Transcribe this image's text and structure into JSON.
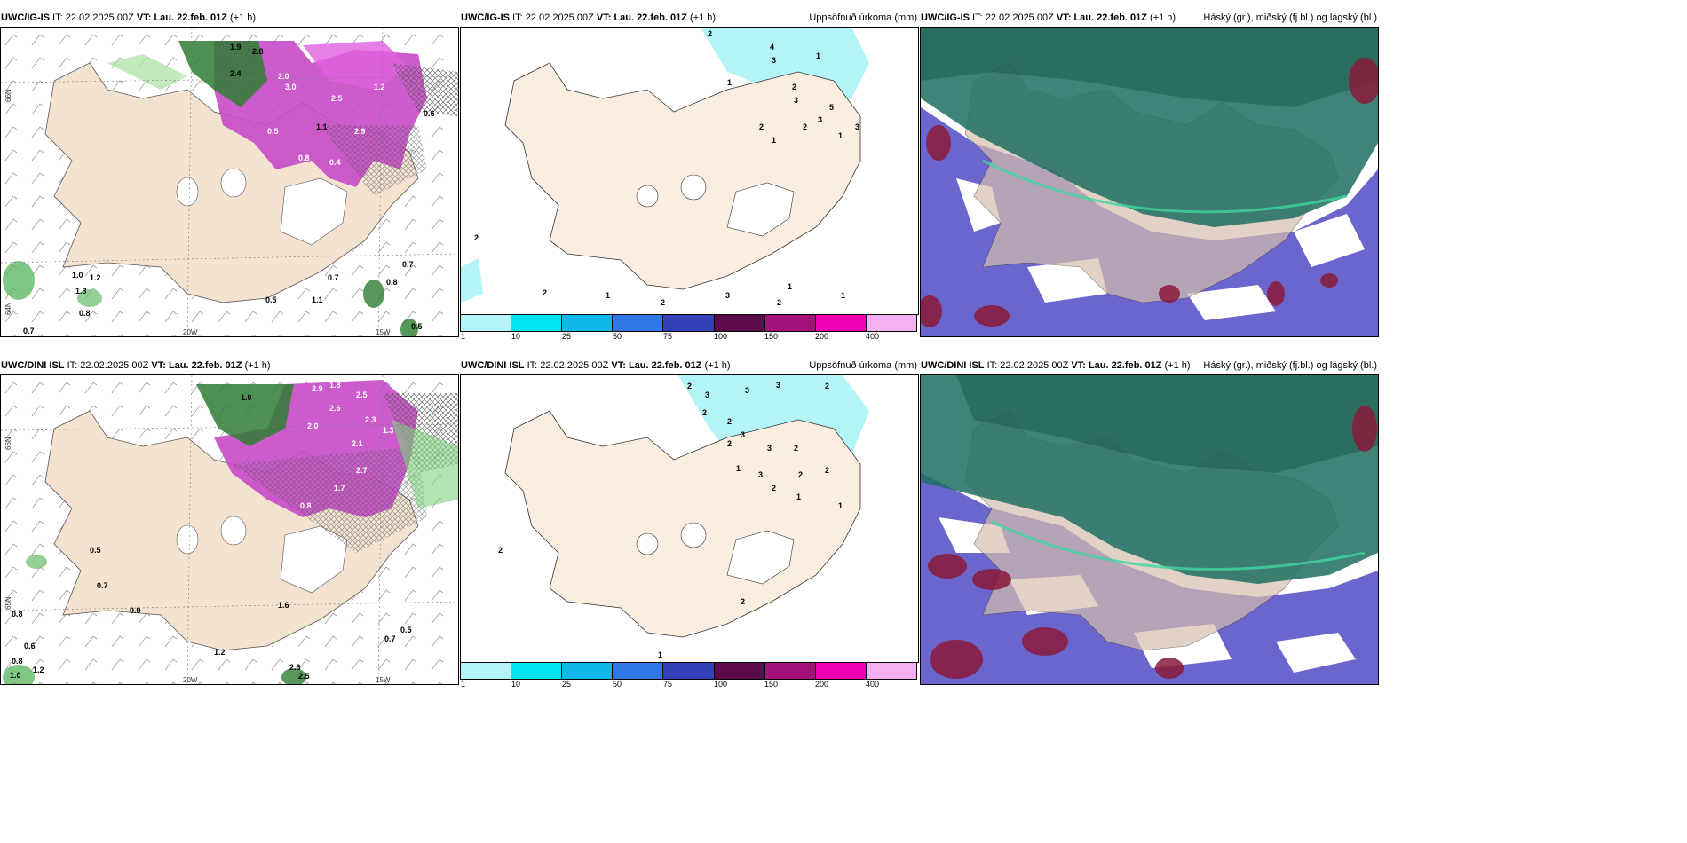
{
  "panels": {
    "p1": {
      "model": "UWC/IG-IS",
      "it_label": "IT:",
      "it_value": "22.02.2025 00Z",
      "vt_label": "VT:",
      "vt_value": "Lau. 22.feb. 01Z",
      "offset": "(+1 h)",
      "right_title": ""
    },
    "p2": {
      "model": "UWC/IG-IS",
      "it_label": "IT:",
      "it_value": "22.02.2025 00Z",
      "vt_label": "VT:",
      "vt_value": "Lau. 22.feb. 01Z",
      "offset": "(+1 h)",
      "right_title": "Uppsöfnuð úrkoma (mm)"
    },
    "p3": {
      "model": "UWC/IG-IS",
      "it_label": "IT:",
      "it_value": "22.02.2025 00Z",
      "vt_label": "VT:",
      "vt_value": "Lau. 22.feb. 01Z",
      "offset": "(+1 h)",
      "right_title": "Háský (gr.), miðský (fj.bl.) og lágský (bl.)"
    },
    "p4": {
      "model": "UWC/DINI ISL",
      "it_label": "IT:",
      "it_value": "22.02.2025 00Z",
      "vt_label": "VT:",
      "vt_value": "Lau. 22.feb. 01Z",
      "offset": "(+1 h)",
      "right_title": ""
    },
    "p5": {
      "model": "UWC/DINI ISL",
      "it_label": "IT:",
      "it_value": "22.02.2025 00Z",
      "vt_label": "VT:",
      "vt_value": "Lau. 22.feb. 01Z",
      "offset": "(+1 h)",
      "right_title": "Uppsöfnuð úrkoma (mm)"
    },
    "p6": {
      "model": "UWC/DINI ISL",
      "it_label": "IT:",
      "it_value": "22.02.2025 00Z",
      "vt_label": "VT:",
      "vt_value": "Lau. 22.feb. 01Z",
      "offset": "(+1 h)",
      "right_title": "Háský (gr.), miðský (fj.bl.) og lágský (bl.)"
    }
  },
  "axis_labels": {
    "lat66": "66N",
    "lat65": "65N",
    "lat64": "64N",
    "lon20": "20W",
    "lon15": "15W",
    "lat66b": "66N",
    "lon15b": "15W"
  },
  "colorbar": {
    "ticks": [
      "1",
      "10",
      "25",
      "50",
      "75",
      "100",
      "150",
      "200",
      "400"
    ],
    "colors": [
      "#b3f5f7",
      "#00e5f0",
      "#12b8ea",
      "#2f79e6",
      "#3440b8",
      "#5c0a4a",
      "#a3127a",
      "#f000b4",
      "#f4b0f0"
    ]
  },
  "precip_values_top": [
    "2.8",
    "1.9",
    "2.4",
    "2.0",
    "3.0",
    "2.5",
    "1.2",
    "2.9",
    "1.1",
    "1.0",
    "1.2",
    "0.8",
    "0.7",
    "0.5",
    "1.1",
    "0.7",
    "0.8",
    "0.5",
    "1.3",
    "0.5",
    "0.6",
    "0.7",
    "0.4",
    "0.8"
  ],
  "precip_values_bottom": [
    "2.9",
    "1.8",
    "1.9",
    "2.0",
    "2.6",
    "2.5",
    "2.3",
    "1.3",
    "2.1",
    "2.7",
    "1.7",
    "0.8",
    "0.5",
    "0.7",
    "0.8",
    "0.9",
    "0.6",
    "1.2",
    "1.0",
    "1.6",
    "0.7",
    "0.5",
    "2.6",
    "2.5",
    "1.2",
    "0.8"
  ],
  "accum_values_top": [
    "2",
    "3",
    "4",
    "2",
    "1",
    "1",
    "3",
    "2",
    "3",
    "5",
    "2",
    "1",
    "3",
    "1",
    "2",
    "2",
    "1",
    "2",
    "3",
    "1",
    "1",
    "2"
  ],
  "accum_values_bottom": [
    "2",
    "3",
    "3",
    "2",
    "2",
    "3",
    "2",
    "2",
    "3",
    "3",
    "2",
    "1",
    "3",
    "2",
    "2",
    "1",
    "1",
    "2",
    "2",
    "2",
    "1"
  ],
  "colors": {
    "land": "#f6e4d2",
    "ice": "#ffffff",
    "snow_purple": "#cc44cc",
    "rain_green": "#2e8b3a",
    "accum_cyan": "#b3f5f7",
    "cloud_high": "#1a5e58",
    "cloud_mid": "#5555cc",
    "cloud_low": "#8a1a3a"
  }
}
